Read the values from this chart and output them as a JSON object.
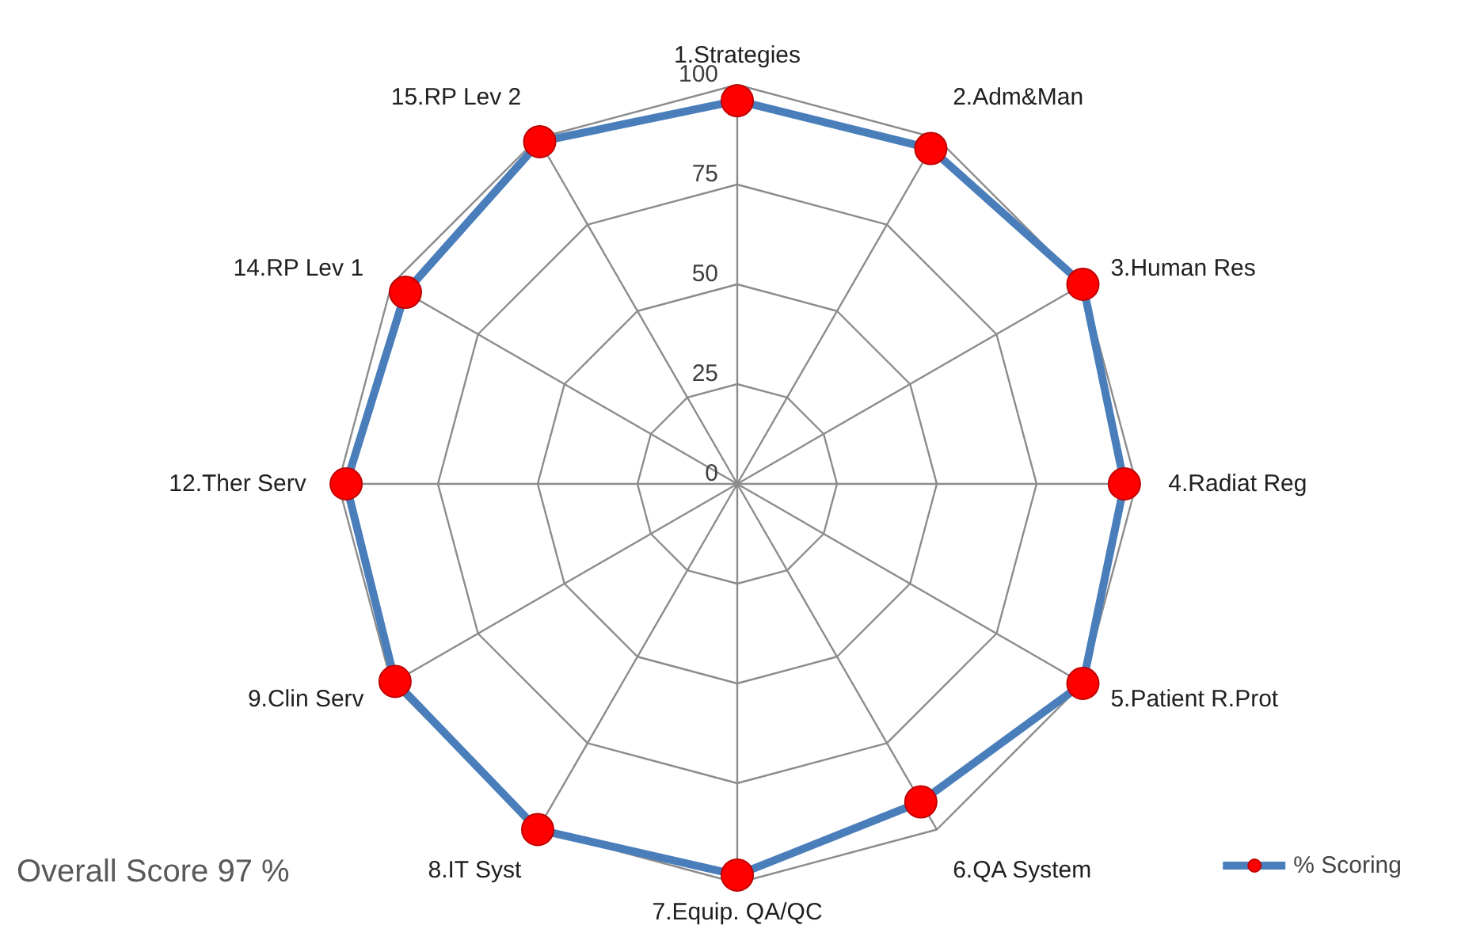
{
  "chart_data": {
    "type": "radar",
    "categories": [
      "1.Strategies",
      "2.Adm&Man",
      "3.Human Res",
      "4.Radiat Reg",
      "5.Patient R.Prot",
      "6.QA System",
      "7.Equip. QA/QC",
      "8.IT Syst",
      "9.Clin Serv",
      "12.Ther Serv",
      "14.RP Lev 1",
      "15.RP Lev 2"
    ],
    "series": [
      {
        "name": "% Scoring",
        "color": "#4a7ebb",
        "values": [
          96,
          97,
          100,
          97,
          100,
          92,
          98,
          100,
          99,
          98,
          96,
          99
        ]
      }
    ],
    "ylim": [
      0,
      100
    ],
    "yticks": [
      0,
      25,
      50,
      75,
      100
    ],
    "grid": true,
    "marker": "circle",
    "legend": "bottom right",
    "annotations": [
      "Overall Score 97 %"
    ]
  }
}
